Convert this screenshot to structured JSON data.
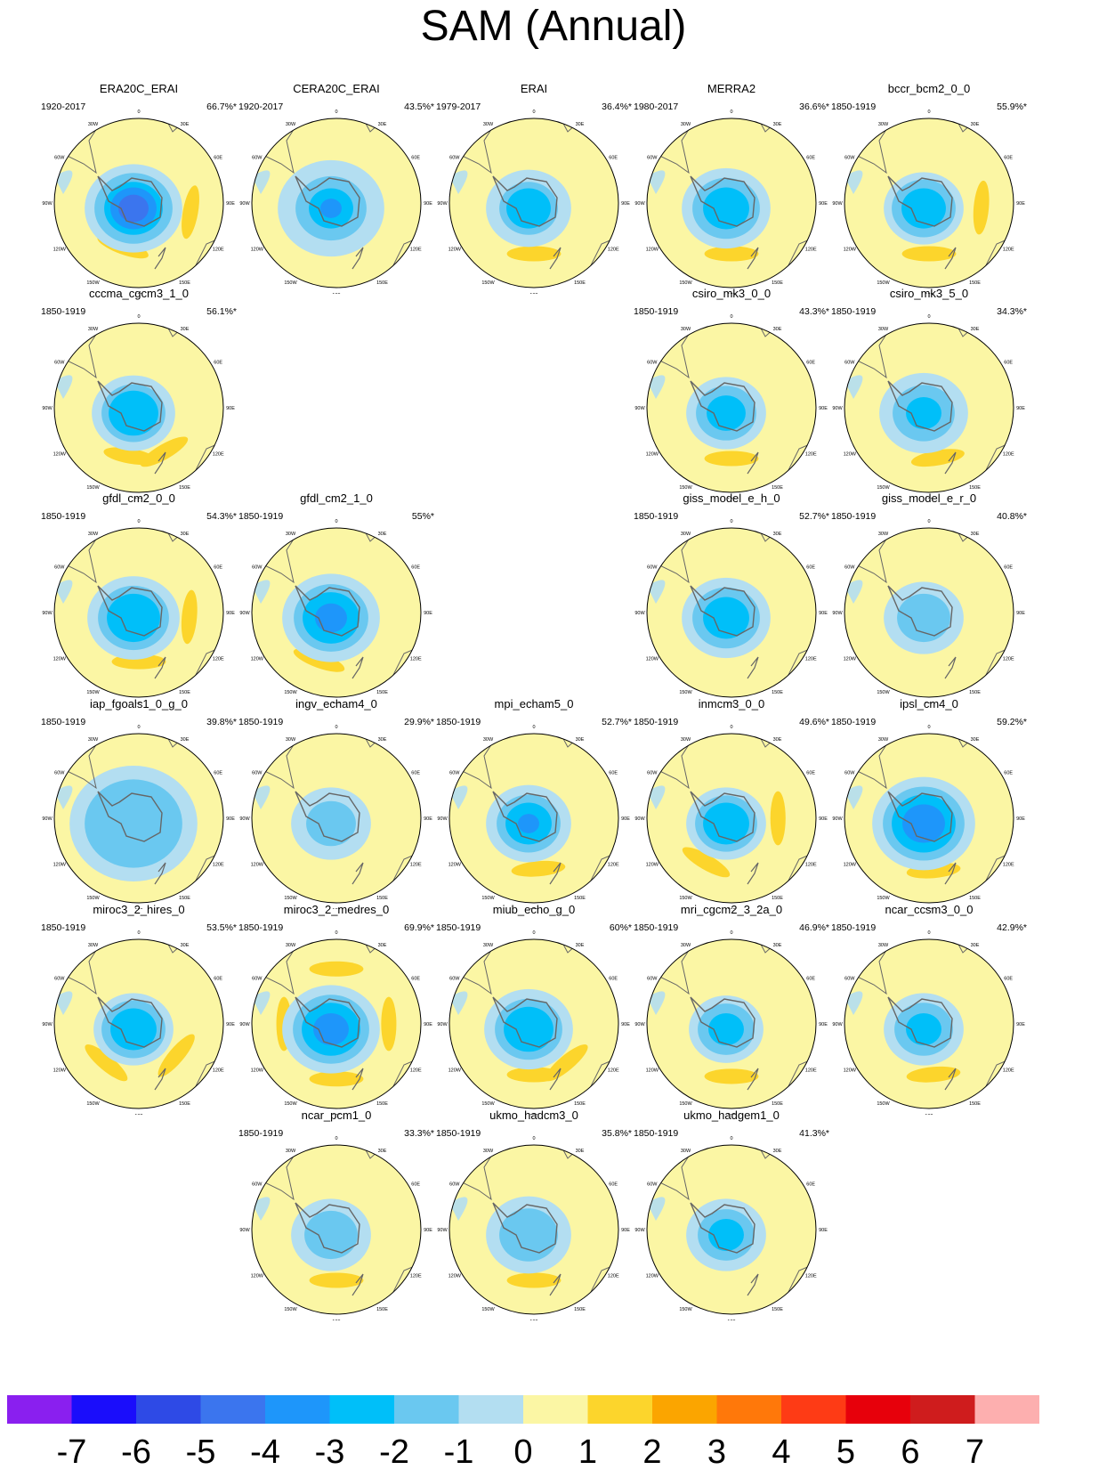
{
  "title": "SAM (Annual)",
  "colors": {
    "palette": [
      "#8a1fef",
      "#1a0dfb",
      "#2e4ae6",
      "#3b75ee",
      "#1e96fa",
      "#00bff9",
      "#6ac8f0",
      "#b3def1",
      "#fbf6a4",
      "#fcd52c",
      "#fba500",
      "#ff780a",
      "#fe3b15",
      "#e7000b",
      "#cf1c1d",
      "#fdafaf"
    ],
    "land_outline": "#666666",
    "ring": "#000000"
  },
  "colorbar": {
    "labels": [
      "-7",
      "-6",
      "-5",
      "-4",
      "-3",
      "-2",
      "-1",
      "0",
      "1",
      "2",
      "3",
      "4",
      "5",
      "6",
      "7"
    ]
  },
  "map_labels": [
    "0",
    "30E",
    "60E",
    "90E",
    "120E",
    "150E",
    "180",
    "150W",
    "120W",
    "90W",
    "60W",
    "30W"
  ],
  "panels": [
    {
      "name": "ERA20C_ERAI",
      "period": "1920-2017",
      "pct": "66.7%*",
      "fields": [
        {
          "lvl": -1,
          "r": 0.55
        },
        {
          "lvl": -2,
          "r": 0.44
        },
        {
          "lvl": -3,
          "r": 0.33
        },
        {
          "lvl": -4,
          "r": 0.26
        },
        {
          "lvl": -5,
          "r": 0.17
        }
      ],
      "pos": [
        {
          "a": 100,
          "d": 0.62
        },
        {
          "a": 200,
          "d": 0.55
        }
      ]
    },
    {
      "name": "CERA20C_ERAI",
      "period": "1920-2017",
      "pct": "43.5%*",
      "fields": [
        {
          "lvl": -1,
          "r": 0.6
        },
        {
          "lvl": -2,
          "r": 0.4
        },
        {
          "lvl": -3,
          "r": 0.25
        },
        {
          "lvl": -4,
          "r": 0.12
        }
      ],
      "pos": []
    },
    {
      "name": "ERAI",
      "period": "1979-2017",
      "pct": "36.4%*",
      "fields": [
        {
          "lvl": -1,
          "r": 0.48
        },
        {
          "lvl": -2,
          "r": 0.33
        },
        {
          "lvl": -3,
          "r": 0.25
        }
      ],
      "pos": [
        {
          "a": 180,
          "d": 0.6
        }
      ]
    },
    {
      "name": "MERRA2",
      "period": "1980-2017",
      "pct": "36.6%*",
      "fields": [
        {
          "lvl": -1,
          "r": 0.5
        },
        {
          "lvl": -2,
          "r": 0.38
        },
        {
          "lvl": -3,
          "r": 0.26
        }
      ],
      "pos": [
        {
          "a": 180,
          "d": 0.6
        }
      ]
    },
    {
      "name": "bccr_bcm2_0_0",
      "period": "1850-1919",
      "pct": "55.9%*",
      "fields": [
        {
          "lvl": -1,
          "r": 0.45
        },
        {
          "lvl": -2,
          "r": 0.36
        },
        {
          "lvl": -3,
          "r": 0.25
        }
      ],
      "pos": [
        {
          "a": 95,
          "d": 0.62
        },
        {
          "a": 180,
          "d": 0.6
        }
      ]
    },
    {
      "name": "cccma_cgcm3_1_0",
      "period": "1850-1919",
      "pct": "56.1%*",
      "fields": [
        {
          "lvl": -1,
          "r": 0.47
        },
        {
          "lvl": -2,
          "r": 0.36
        },
        {
          "lvl": -3,
          "r": 0.28
        }
      ],
      "pos": [
        {
          "a": 150,
          "d": 0.6
        },
        {
          "a": 190,
          "d": 0.58
        }
      ]
    },
    {
      "name": "csiro_mk3_0_0",
      "period": "1850-1919",
      "pct": "43.3%*",
      "fields": [
        {
          "lvl": -1,
          "r": 0.45
        },
        {
          "lvl": -2,
          "r": 0.34
        },
        {
          "lvl": -3,
          "r": 0.22
        }
      ],
      "pos": [
        {
          "a": 180,
          "d": 0.6
        }
      ]
    },
    {
      "name": "csiro_mk3_5_0",
      "period": "1850-1919",
      "pct": "34.3%*",
      "fields": [
        {
          "lvl": -1,
          "r": 0.5
        },
        {
          "lvl": -2,
          "r": 0.35
        },
        {
          "lvl": -3,
          "r": 0.2
        }
      ],
      "pos": [
        {
          "a": 170,
          "d": 0.6
        }
      ]
    },
    {
      "name": "gfdl_cm2_0_0",
      "period": "1850-1919",
      "pct": "54.3%*",
      "fields": [
        {
          "lvl": -1,
          "r": 0.52
        },
        {
          "lvl": -2,
          "r": 0.4
        },
        {
          "lvl": -3,
          "r": 0.3
        }
      ],
      "pos": [
        {
          "a": 95,
          "d": 0.6
        },
        {
          "a": 180,
          "d": 0.58
        }
      ]
    },
    {
      "name": "gfdl_cm2_1_0",
      "period": "1850-1919",
      "pct": "55%*",
      "fields": [
        {
          "lvl": -1,
          "r": 0.55
        },
        {
          "lvl": -2,
          "r": 0.42
        },
        {
          "lvl": -3,
          "r": 0.32
        },
        {
          "lvl": -4,
          "r": 0.18
        }
      ],
      "pos": [
        {
          "a": 200,
          "d": 0.6
        }
      ]
    },
    {
      "name": "giss_model_e_h_0",
      "period": "1850-1919",
      "pct": "52.7%*",
      "fields": [
        {
          "lvl": -1,
          "r": 0.5
        },
        {
          "lvl": -2,
          "r": 0.38
        },
        {
          "lvl": -3,
          "r": 0.26
        }
      ],
      "pos": []
    },
    {
      "name": "giss_model_e_r_0",
      "period": "1850-1919",
      "pct": "40.8%*",
      "fields": [
        {
          "lvl": -1,
          "r": 0.45
        },
        {
          "lvl": -2,
          "r": 0.3
        }
      ],
      "pos": []
    },
    {
      "name": "iap_fgoals1_0_g_0",
      "period": "1850-1919",
      "pct": "39.8%*",
      "fields": [
        {
          "lvl": -1,
          "r": 0.72
        },
        {
          "lvl": -2,
          "r": 0.55
        }
      ],
      "pos": [
        {
          "a": 270,
          "d": 0.2
        },
        {
          "a": 250,
          "d": 0.15
        }
      ]
    },
    {
      "name": "ingv_echam4_0",
      "period": "1850-1919",
      "pct": "29.9%*",
      "fields": [
        {
          "lvl": -1,
          "r": 0.45
        },
        {
          "lvl": -2,
          "r": 0.28
        }
      ],
      "pos": []
    },
    {
      "name": "mpi_echam5_0",
      "period": "1850-1919",
      "pct": "52.7%*",
      "fields": [
        {
          "lvl": -1,
          "r": 0.48
        },
        {
          "lvl": -2,
          "r": 0.36
        },
        {
          "lvl": -3,
          "r": 0.26
        },
        {
          "lvl": -4,
          "r": 0.12
        }
      ],
      "pos": [
        {
          "a": 175,
          "d": 0.6
        }
      ]
    },
    {
      "name": "inmcm3_0_0",
      "period": "1850-1919",
      "pct": "49.6%*",
      "fields": [
        {
          "lvl": -1,
          "r": 0.45
        },
        {
          "lvl": -2,
          "r": 0.35
        },
        {
          "lvl": -3,
          "r": 0.26
        }
      ],
      "pos": [
        {
          "a": 210,
          "d": 0.6
        },
        {
          "a": 90,
          "d": 0.55
        }
      ]
    },
    {
      "name": "ipsl_cm4_0",
      "period": "1850-1919",
      "pct": "59.2%*",
      "fields": [
        {
          "lvl": -1,
          "r": 0.58
        },
        {
          "lvl": -2,
          "r": 0.46
        },
        {
          "lvl": -3,
          "r": 0.36
        },
        {
          "lvl": -4,
          "r": 0.24
        }
      ],
      "pos": [
        {
          "a": 175,
          "d": 0.62
        }
      ]
    },
    {
      "name": "miroc3_2_hires_0",
      "period": "1850-1919",
      "pct": "53.5%*",
      "fields": [
        {
          "lvl": -1,
          "r": 0.45
        },
        {
          "lvl": -2,
          "r": 0.36
        },
        {
          "lvl": -3,
          "r": 0.26
        }
      ],
      "pos": [
        {
          "a": 220,
          "d": 0.6
        },
        {
          "a": 130,
          "d": 0.58
        }
      ]
    },
    {
      "name": "miroc3_2_medres_0",
      "period": "1850-1919",
      "pct": "69.9%*",
      "fields": [
        {
          "lvl": -1,
          "r": 0.55
        },
        {
          "lvl": -2,
          "r": 0.43
        },
        {
          "lvl": -3,
          "r": 0.33
        },
        {
          "lvl": -4,
          "r": 0.2
        }
      ],
      "pos": [
        {
          "a": 0,
          "d": 0.65
        },
        {
          "a": 180,
          "d": 0.65
        },
        {
          "a": 90,
          "d": 0.62
        },
        {
          "a": 270,
          "d": 0.62
        }
      ]
    },
    {
      "name": "miub_echo_g_0",
      "period": "1850-1919",
      "pct": "60%*",
      "fields": [
        {
          "lvl": -1,
          "r": 0.5
        },
        {
          "lvl": -2,
          "r": 0.38
        },
        {
          "lvl": -3,
          "r": 0.28
        }
      ],
      "pos": [
        {
          "a": 140,
          "d": 0.6
        },
        {
          "a": 180,
          "d": 0.6
        }
      ]
    },
    {
      "name": "mri_cgcm2_3_2a_0",
      "period": "1850-1919",
      "pct": "46.9%*",
      "fields": [
        {
          "lvl": -1,
          "r": 0.42
        },
        {
          "lvl": -2,
          "r": 0.32
        },
        {
          "lvl": -3,
          "r": 0.2
        }
      ],
      "pos": [
        {
          "a": 180,
          "d": 0.62
        }
      ]
    },
    {
      "name": "ncar_ccsm3_0_0",
      "period": "1850-1919",
      "pct": "42.9%*",
      "fields": [
        {
          "lvl": -1,
          "r": 0.45
        },
        {
          "lvl": -2,
          "r": 0.33
        },
        {
          "lvl": -3,
          "r": 0.2
        }
      ],
      "pos": [
        {
          "a": 175,
          "d": 0.6
        }
      ]
    },
    {
      "name": "ncar_pcm1_0",
      "period": "1850-1919",
      "pct": "33.3%*",
      "fields": [
        {
          "lvl": -1,
          "r": 0.45
        },
        {
          "lvl": -2,
          "r": 0.3
        }
      ],
      "pos": [
        {
          "a": 180,
          "d": 0.6
        }
      ]
    },
    {
      "name": "ukmo_hadcm3_0",
      "period": "1850-1919",
      "pct": "35.8%*",
      "fields": [
        {
          "lvl": -1,
          "r": 0.48
        },
        {
          "lvl": -2,
          "r": 0.33
        }
      ],
      "pos": [
        {
          "a": 180,
          "d": 0.6
        }
      ]
    },
    {
      "name": "ukmo_hadgem1_0",
      "period": "1850-1919",
      "pct": "41.3%*",
      "fields": [
        {
          "lvl": -1,
          "r": 0.45
        },
        {
          "lvl": -2,
          "r": 0.32
        },
        {
          "lvl": -3,
          "r": 0.2
        }
      ],
      "pos": []
    }
  ]
}
